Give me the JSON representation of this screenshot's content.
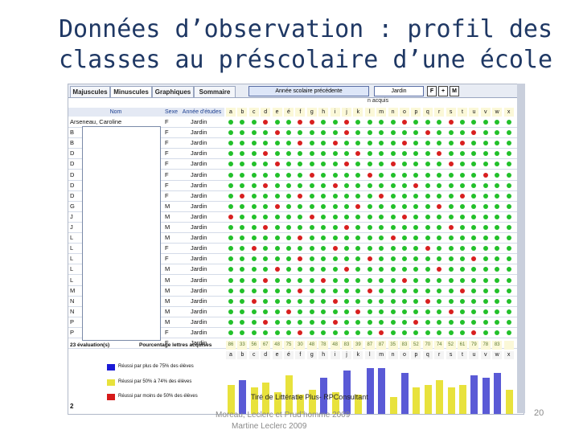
{
  "slide": {
    "title_line1": "Données d’observation : profil des",
    "title_line2": "classes au préscolaire d’une école",
    "credit": "Tiré de Littératie Plus- RPConsultant",
    "citation_line1": "Moreau, Leclerc et Prud’homme 2009",
    "citation_line2": "Martine Leclerc 2009",
    "slide_number": "20"
  },
  "app": {
    "tabs": [
      {
        "label": "Majuscules",
        "active": false
      },
      {
        "label": "Minuscules",
        "active": true
      },
      {
        "label": "Graphiques",
        "active": false
      },
      {
        "label": "Sommaire",
        "active": false
      }
    ],
    "year_label": "Année scolaire précédente",
    "level_value": "Jardin",
    "btn_f": "F",
    "btn_plus": "+",
    "btn_m": "M",
    "acquired_label": "n acquis",
    "headers": {
      "name": "Nom",
      "sexe": "Sexe",
      "level": "Année d'études"
    },
    "letters": [
      "a",
      "b",
      "c",
      "d",
      "e",
      "é",
      "f",
      "g",
      "h",
      "i",
      "j",
      "k",
      "l",
      "m",
      "n",
      "o",
      "p",
      "q",
      "r",
      "s",
      "t",
      "u",
      "v",
      "w",
      "x"
    ],
    "first_student": "Arseneau, Caroline",
    "name_initials": [
      "B",
      "B",
      "D",
      "D",
      "D",
      "D",
      "D",
      "G",
      "J",
      "J",
      "L",
      "L",
      "L",
      "L",
      "L",
      "M",
      "N",
      "N",
      "P",
      "P"
    ],
    "sexes": [
      "F",
      "F",
      "F",
      "F",
      "F",
      "F",
      "F",
      "F",
      "M",
      "M",
      "M",
      "M",
      "F",
      "F",
      "M",
      "M",
      "M",
      "M",
      "M",
      "M",
      "F",
      "F"
    ],
    "levels": [
      "Jardin",
      "Jardin",
      "Jardin",
      "Jardin",
      "Jardin",
      "Jardin",
      "Jardin",
      "Jardin",
      "Jardin",
      "Jardin",
      "Jardin",
      "Jardin",
      "Jardin",
      "Jardin",
      "Jardin",
      "Jardin",
      "Jardin",
      "Jardin",
      "Jardin",
      "Jardin",
      "Jardin",
      "Jardin"
    ],
    "evaluations_label": "23 évaluation(s)",
    "percent_label": "Pourcentage lettres acquises",
    "percents": [
      "86",
      "33",
      "56",
      "67",
      "48",
      "75",
      "30",
      "48",
      "78",
      "48",
      "83",
      "39",
      "87",
      "87",
      "35",
      "83",
      "52",
      "70",
      "74",
      "52",
      "61",
      "79",
      "78",
      "83",
      ""
    ],
    "bar_levels": [
      0.6,
      0.7,
      0.55,
      0.65,
      0.45,
      0.8,
      0.4,
      0.5,
      0.75,
      0.45,
      0.9,
      0.4,
      0.95,
      0.95,
      0.35,
      0.85,
      0.55,
      0.6,
      0.7,
      0.55,
      0.6,
      0.8,
      0.75,
      0.85,
      0.5
    ],
    "bar_colors": [
      "#e8e23c",
      "#5a5ad6",
      "#e8e23c",
      "#e8e23c",
      "#e8e23c",
      "#e8e23c",
      "#e8e23c",
      "#e8e23c",
      "#5a5ad6",
      "#e8e23c",
      "#5a5ad6",
      "#e8e23c",
      "#5a5ad6",
      "#5a5ad6",
      "#e8e23c",
      "#5a5ad6",
      "#e8e23c",
      "#e8e23c",
      "#e8e23c",
      "#e8e23c",
      "#e8e23c",
      "#5a5ad6",
      "#5a5ad6",
      "#5a5ad6",
      "#e8e23c"
    ],
    "legend": [
      {
        "color": "#1a1ad6",
        "label": "Réussi par plus de 75% des élèves"
      },
      {
        "color": "#e8e23c",
        "label": "Réussi par 50% à 74% des élèves"
      },
      {
        "color": "#d61a1a",
        "label": "Réussi par moins de 50% des élèves"
      }
    ],
    "page_number": "2",
    "dot_colors": {
      "green": "#22c02a",
      "red": "#d81f1f"
    }
  }
}
